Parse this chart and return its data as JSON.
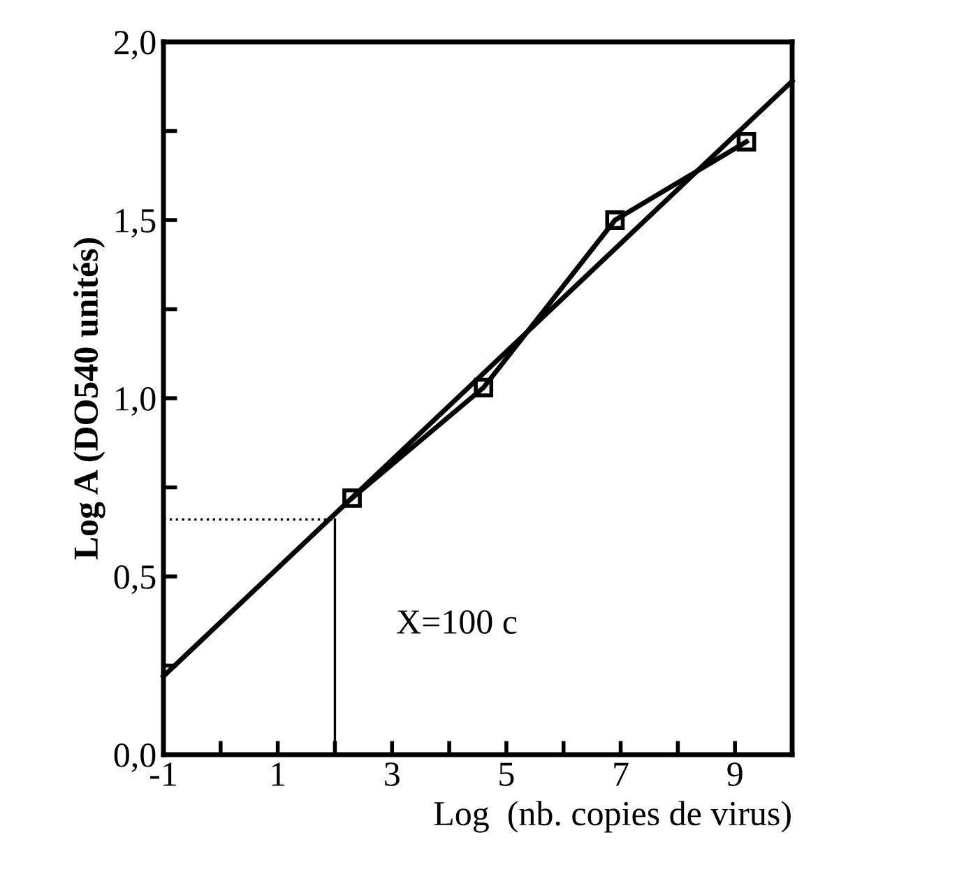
{
  "chart_data": {
    "type": "line",
    "xlabel": "Log  (nb. copies de virus)",
    "ylabel": "Log A (DO540 unités)",
    "xlim": [
      -1,
      10
    ],
    "ylim": [
      0,
      2.0
    ],
    "xticks": [
      -1,
      {
        "value": 0,
        "label": null
      },
      1,
      {
        "value": 2,
        "label": null
      },
      3,
      {
        "value": 4,
        "label": null
      },
      5,
      {
        "value": 6,
        "label": null
      },
      7,
      {
        "value": 8,
        "label": null
      },
      9
    ],
    "yticks": [
      {
        "value": 0,
        "label": "0,0"
      },
      {
        "value": 0.25,
        "label": null
      },
      {
        "value": 0.5,
        "label": "0,5"
      },
      {
        "value": 0.75,
        "label": null
      },
      {
        "value": 1.0,
        "label": "1,0"
      },
      {
        "value": 1.25,
        "label": null
      },
      {
        "value": 1.5,
        "label": "1,5"
      },
      {
        "value": 1.75,
        "label": null
      },
      {
        "value": 2.0,
        "label": "2,0"
      }
    ],
    "grid": false,
    "legend": false,
    "series": [
      {
        "color": "#000000",
        "marker": "square",
        "line_style": "solid",
        "x": [
          2.3,
          4.6,
          6.9,
          9.2
        ],
        "values": [
          0.72,
          1.03,
          1.5,
          1.72
        ]
      },
      {
        "color": "#000000",
        "marker": "none",
        "line_style": "solid",
        "x": [
          -1,
          10
        ],
        "values": [
          0.22,
          1.89
        ]
      },
      {
        "color": "#000000",
        "marker": "none",
        "line_style": "dotted",
        "x": [
          -1,
          2
        ],
        "values": [
          0.66,
          0.66
        ]
      },
      {
        "color": "#000000",
        "marker": "none",
        "line_style": "solid",
        "x": [
          2,
          2
        ],
        "values": [
          0.66,
          0
        ]
      }
    ],
    "annotations": [
      "X=100 c"
    ]
  }
}
